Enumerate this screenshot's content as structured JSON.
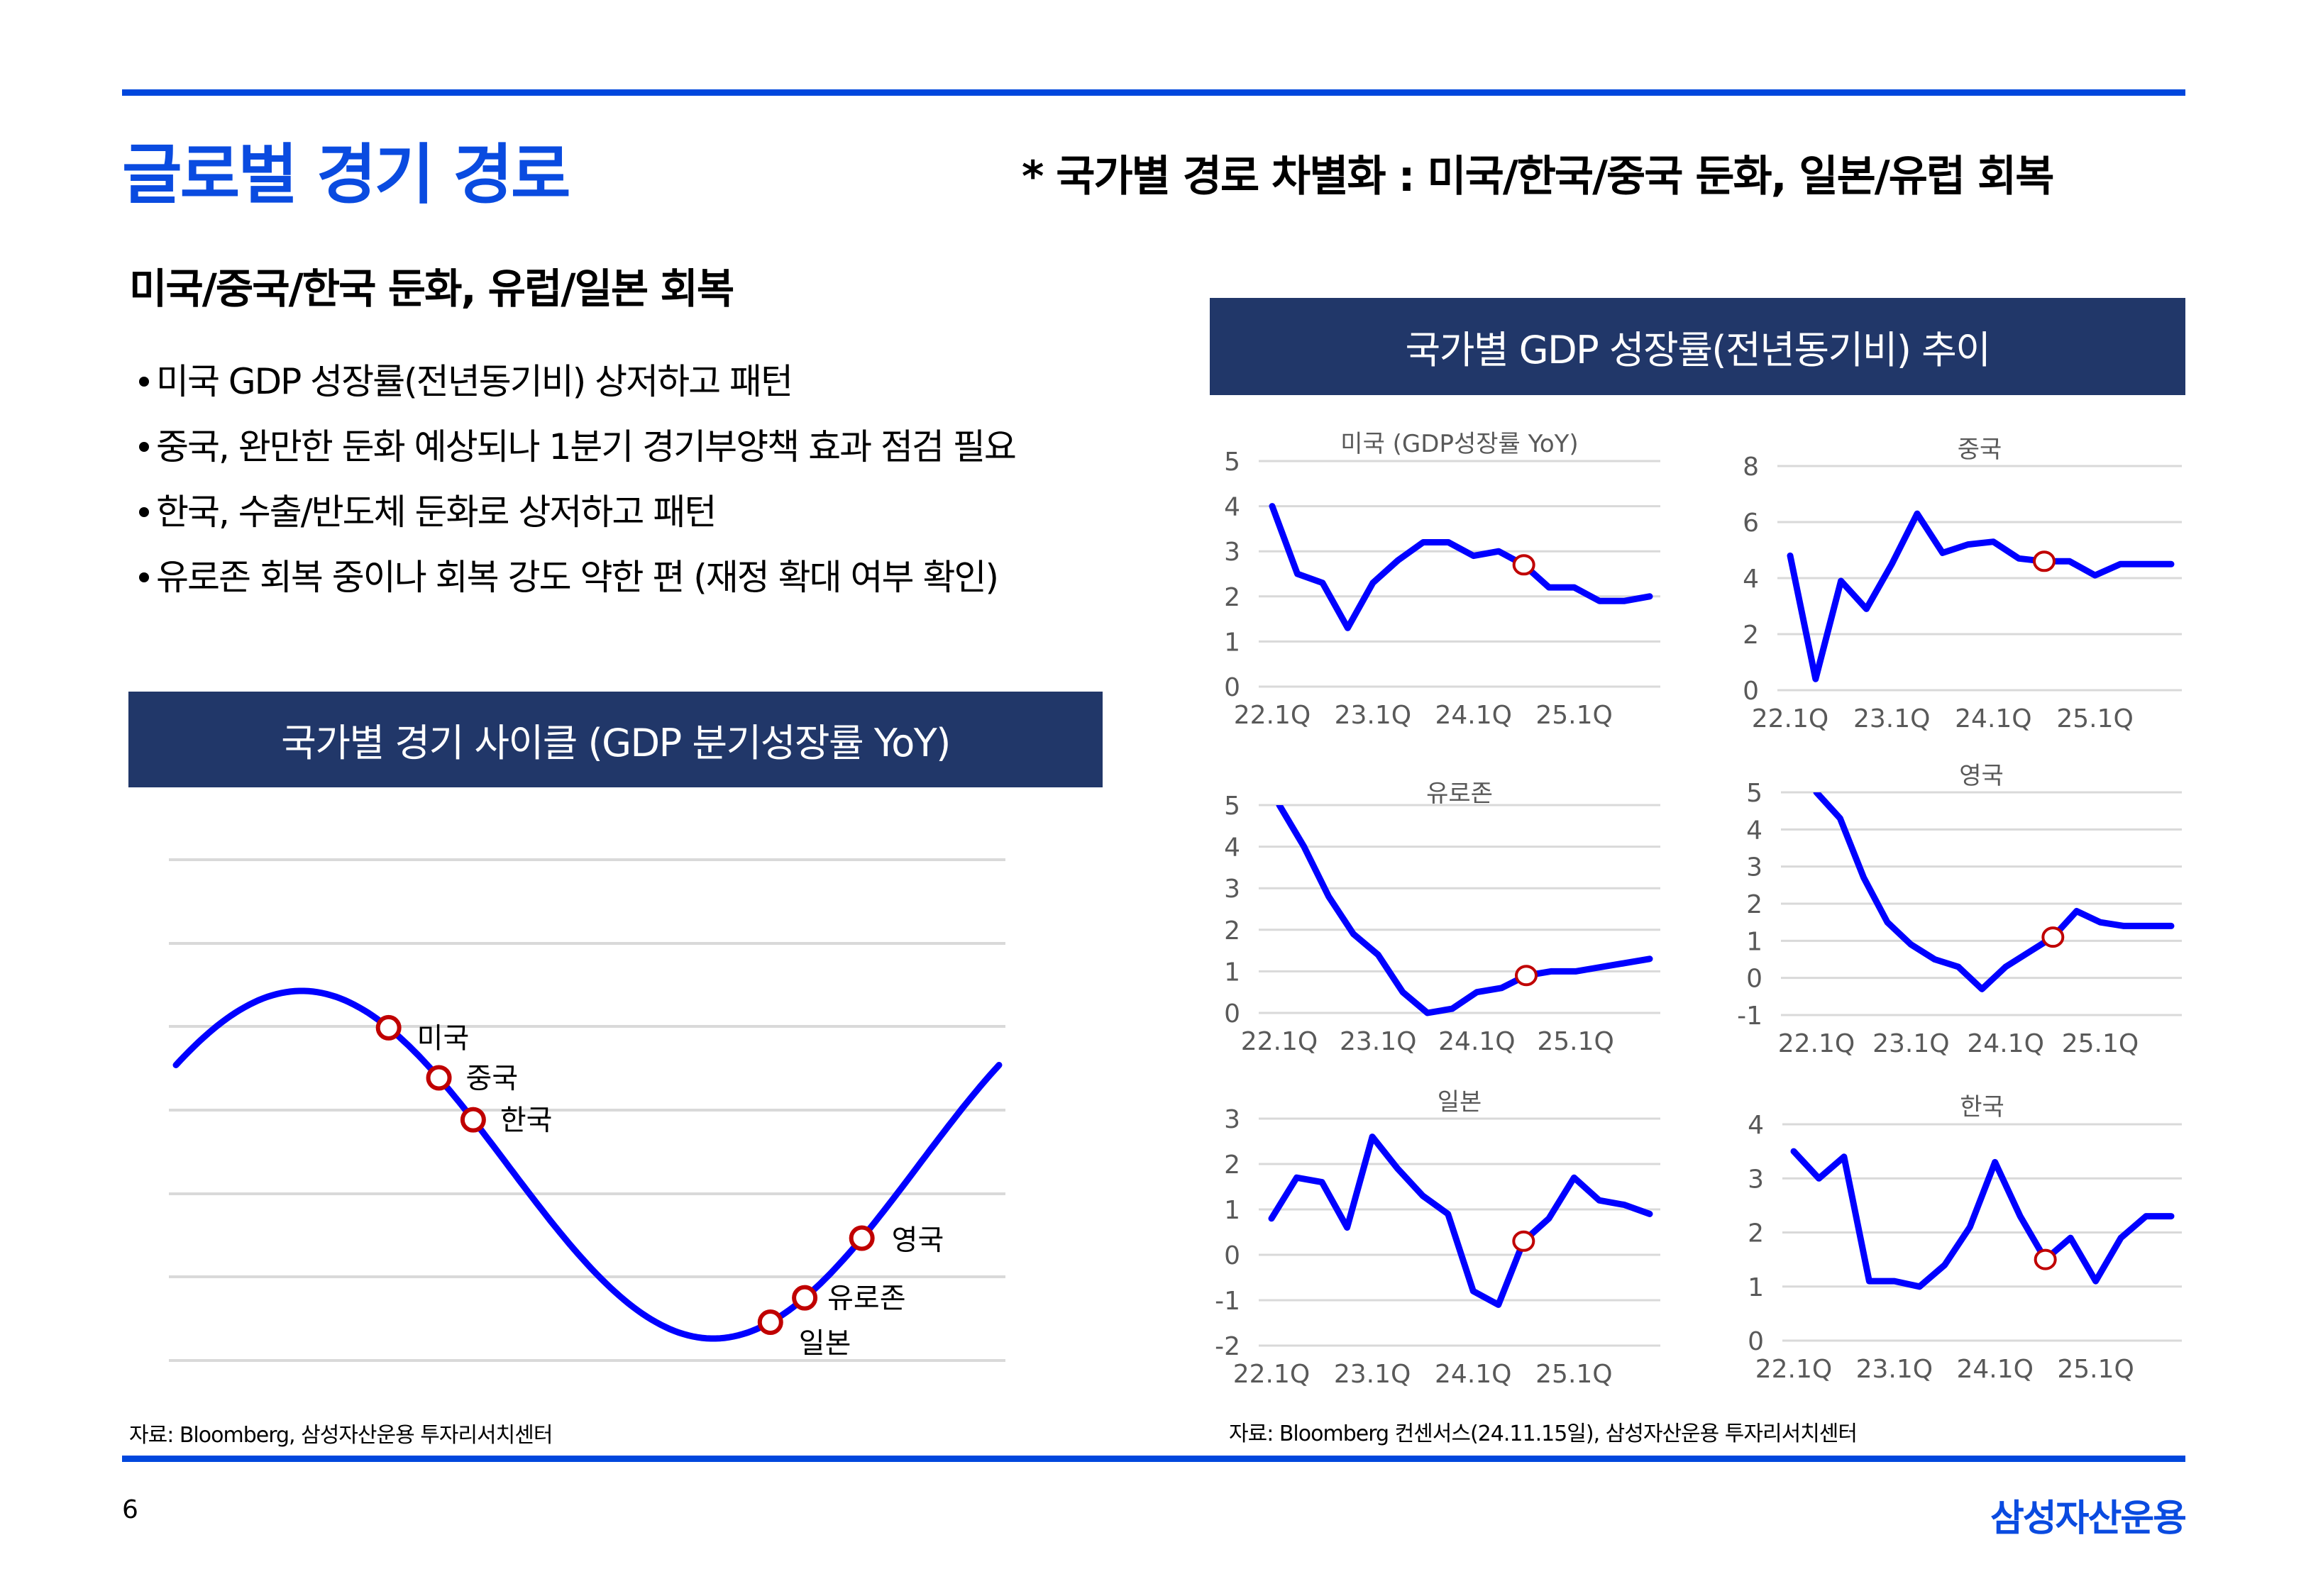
{
  "page": {
    "title": "글로벌 경기 경로",
    "header_note": "* 국가별 경로 차별화 : 미국/한국/중국 둔화, 일본/유럽 회복",
    "subheading": "미국/중국/한국 둔화, 유럽/일본 회복",
    "bullets": [
      "미국 GDP 성장률(전년동기비) 상저하고 패턴",
      "중국, 완만한 둔화 예상되나 1분기 경기부양책 효과 점검 필요",
      "한국, 수출/반도체 둔화로 상저하고 패턴",
      "유로존 회복 중이나 회복 강도 약한 편 (재정 확대 여부 확인)"
    ],
    "left_banner": "국가별 경기 사이클 (GDP 분기성장률 YoY)",
    "right_banner": "국가별 GDP 성장률(전년동기비) 추이",
    "left_source": "자료: Bloomberg, 삼성자산운용 투자리서치센터",
    "right_source": "자료: Bloomberg 컨센서스(24.11.15일), 삼성자산운용 투자리서치센터",
    "page_number": "6",
    "logo": "삼성자산운용",
    "colors": {
      "brand_blue": "#0a4be0",
      "banner_navy": "#213769",
      "line_blue": "#0000ff",
      "marker_red": "#c00000",
      "grid": "#d9d9d9"
    }
  },
  "chart_data": [
    {
      "type": "line",
      "title": "국가별 경기 사이클 (GDP 분기성장률 YoY)",
      "description_kind": "conceptual sine cycle",
      "grid": true,
      "cycle_points": [
        {
          "label": "미국",
          "phase_deg": 128
        },
        {
          "label": "중국",
          "phase_deg": 150
        },
        {
          "label": "한국",
          "phase_deg": 165
        },
        {
          "label": "일본",
          "phase_deg": 295
        },
        {
          "label": "유로존",
          "phase_deg": 310
        },
        {
          "label": "영국",
          "phase_deg": 335
        }
      ]
    },
    {
      "type": "line",
      "title": "미국 (GDP성장률 YoY)",
      "ylim": [
        0,
        5
      ],
      "yticks": [
        "0",
        "1",
        "2",
        "3",
        "4",
        "5"
      ],
      "xticks": [
        "22.1Q",
        "23.1Q",
        "24.1Q",
        "25.1Q"
      ],
      "x": [
        "22.1Q",
        "22.2Q",
        "22.3Q",
        "22.4Q",
        "23.1Q",
        "23.2Q",
        "23.3Q",
        "23.4Q",
        "24.1Q",
        "24.2Q",
        "24.3Q",
        "24.4Q",
        "25.1Q",
        "25.2Q",
        "25.3Q",
        "25.4Q"
      ],
      "values": [
        4.0,
        2.5,
        2.3,
        1.3,
        2.3,
        2.8,
        3.2,
        3.2,
        2.9,
        3.0,
        2.7,
        2.2,
        2.2,
        1.9,
        1.9,
        2.0
      ],
      "marker_index": 10
    },
    {
      "type": "line",
      "title": "중국",
      "ylim": [
        0,
        8
      ],
      "yticks": [
        "0",
        "2",
        "4",
        "6",
        "8"
      ],
      "xticks": [
        "22.1Q",
        "23.1Q",
        "24.1Q",
        "25.1Q"
      ],
      "x": [
        "22.1Q",
        "22.2Q",
        "22.3Q",
        "22.4Q",
        "23.1Q",
        "23.2Q",
        "23.3Q",
        "23.4Q",
        "24.1Q",
        "24.2Q",
        "24.3Q",
        "24.4Q",
        "25.1Q",
        "25.2Q",
        "25.3Q",
        "25.4Q"
      ],
      "values": [
        4.8,
        0.4,
        3.9,
        2.9,
        4.5,
        6.3,
        4.9,
        5.2,
        5.3,
        4.7,
        4.6,
        4.6,
        4.1,
        4.5,
        4.5,
        4.5
      ],
      "marker_index": 10
    },
    {
      "type": "line",
      "title": "유로존",
      "ylim": [
        0,
        5
      ],
      "yticks": [
        "0",
        "1",
        "2",
        "3",
        "4",
        "5"
      ],
      "xticks": [
        "22.1Q",
        "23.1Q",
        "24.1Q",
        "25.1Q"
      ],
      "x": [
        "22.1Q",
        "22.2Q",
        "22.3Q",
        "22.4Q",
        "23.1Q",
        "23.2Q",
        "23.3Q",
        "23.4Q",
        "24.1Q",
        "24.2Q",
        "24.3Q",
        "24.4Q",
        "25.1Q",
        "25.2Q",
        "25.3Q",
        "25.4Q"
      ],
      "values": [
        5.0,
        4.0,
        2.8,
        1.9,
        1.4,
        0.5,
        0.0,
        0.1,
        0.5,
        0.6,
        0.9,
        1.0,
        1.0,
        1.1,
        1.2,
        1.3
      ],
      "marker_index": 10
    },
    {
      "type": "line",
      "title": "영국",
      "ylim": [
        -1,
        5
      ],
      "yticks": [
        "-1",
        "0",
        "1",
        "2",
        "3",
        "4",
        "5"
      ],
      "xticks": [
        "22.1Q",
        "23.1Q",
        "24.1Q",
        "25.1Q"
      ],
      "x": [
        "22.1Q",
        "22.2Q",
        "22.3Q",
        "22.4Q",
        "23.1Q",
        "23.2Q",
        "23.3Q",
        "23.4Q",
        "24.1Q",
        "24.2Q",
        "24.3Q",
        "24.4Q",
        "25.1Q",
        "25.2Q",
        "25.3Q",
        "25.4Q"
      ],
      "values": [
        5.0,
        4.3,
        2.7,
        1.5,
        0.9,
        0.5,
        0.3,
        -0.3,
        0.3,
        0.7,
        1.1,
        1.8,
        1.5,
        1.4,
        1.4,
        1.4
      ],
      "marker_index": 10
    },
    {
      "type": "line",
      "title": "일본",
      "ylim": [
        -2,
        3
      ],
      "yticks": [
        "-2",
        "-1",
        "0",
        "1",
        "2",
        "3"
      ],
      "xticks": [
        "22.1Q",
        "23.1Q",
        "24.1Q",
        "25.1Q"
      ],
      "x": [
        "22.1Q",
        "22.2Q",
        "22.3Q",
        "22.4Q",
        "23.1Q",
        "23.2Q",
        "23.3Q",
        "23.4Q",
        "24.1Q",
        "24.2Q",
        "24.3Q",
        "24.4Q",
        "25.1Q",
        "25.2Q",
        "25.3Q",
        "25.4Q"
      ],
      "values": [
        0.8,
        1.7,
        1.6,
        0.6,
        2.6,
        1.9,
        1.3,
        0.9,
        -0.8,
        -1.1,
        0.3,
        0.8,
        1.7,
        1.2,
        1.1,
        0.9
      ],
      "marker_index": 10
    },
    {
      "type": "line",
      "title": "한국",
      "ylim": [
        0,
        4
      ],
      "yticks": [
        "0",
        "1",
        "2",
        "3",
        "4"
      ],
      "xticks": [
        "22.1Q",
        "23.1Q",
        "24.1Q",
        "25.1Q"
      ],
      "x": [
        "22.1Q",
        "22.2Q",
        "22.3Q",
        "22.4Q",
        "23.1Q",
        "23.2Q",
        "23.3Q",
        "23.4Q",
        "24.1Q",
        "24.2Q",
        "24.3Q",
        "24.4Q",
        "25.1Q",
        "25.2Q",
        "25.3Q",
        "25.4Q"
      ],
      "values": [
        3.5,
        3.0,
        3.4,
        1.1,
        1.1,
        1.0,
        1.4,
        2.1,
        3.3,
        2.3,
        1.5,
        1.9,
        1.1,
        1.9,
        2.3,
        2.3
      ],
      "marker_index": 10
    }
  ]
}
